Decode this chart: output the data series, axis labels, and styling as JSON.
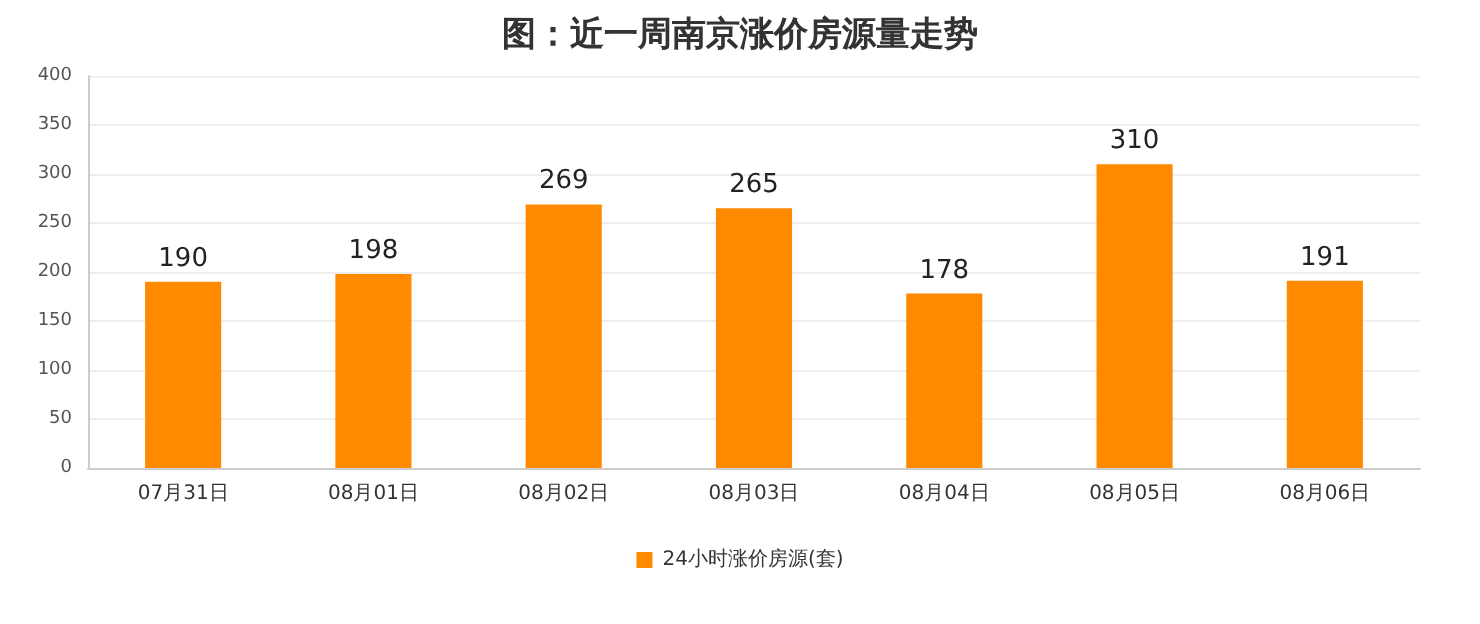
{
  "chart_data": {
    "type": "bar",
    "title": "图：近一周南京涨价房源量走势",
    "categories": [
      "07月31日",
      "08月01日",
      "08月02日",
      "08月03日",
      "08月04日",
      "08月05日",
      "08月06日"
    ],
    "series": [
      {
        "name": "24小时涨价房源(套)",
        "color": "#ff8a00",
        "values": [
          190,
          198,
          269,
          265,
          178,
          310,
          191
        ]
      }
    ],
    "ylim": [
      0,
      400
    ],
    "yticks": [
      0,
      50,
      100,
      150,
      200,
      250,
      300,
      350,
      400
    ],
    "grid": "y",
    "legend": "bottom",
    "data_labels": true
  }
}
